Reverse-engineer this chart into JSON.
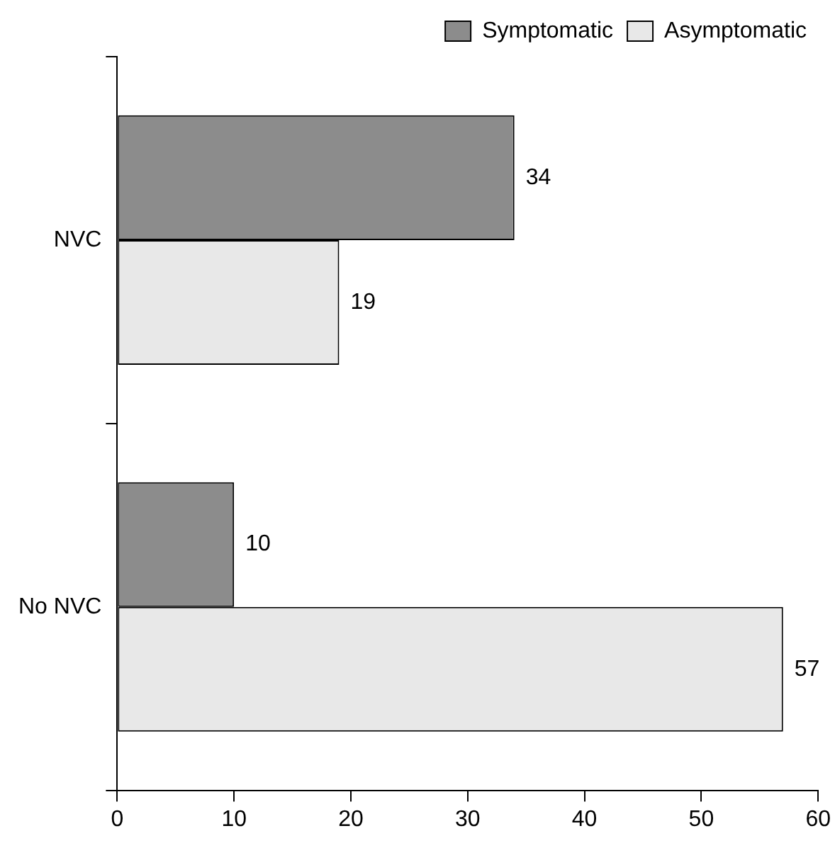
{
  "chart_data": {
    "type": "bar",
    "orientation": "horizontal",
    "categories": [
      "NVC",
      "No NVC"
    ],
    "series": [
      {
        "name": "Symptomatic",
        "color": "#8c8c8c",
        "values": [
          34,
          10
        ]
      },
      {
        "name": "Asymptomatic",
        "color": "#e8e8e8",
        "values": [
          19,
          57
        ]
      }
    ],
    "xlim": [
      0,
      60
    ],
    "xticks": [
      0,
      10,
      20,
      30,
      40,
      50,
      60
    ],
    "grid": false,
    "legend": "top right",
    "data_labels": true
  }
}
